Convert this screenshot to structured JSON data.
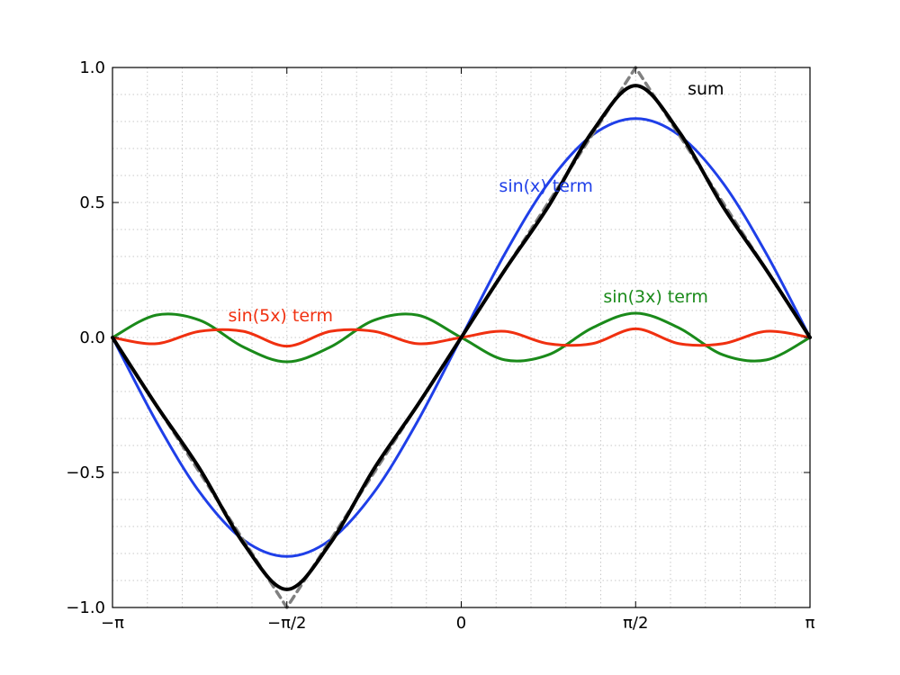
{
  "chart_data": {
    "type": "line",
    "title": "",
    "xlabel": "",
    "ylabel": "",
    "xlim": [
      -3.14159265,
      3.14159265
    ],
    "ylim": [
      -1.0,
      1.0
    ],
    "grid": true,
    "legend": "none",
    "x_ticks": [
      {
        "value": -3.14159265,
        "label": "−π"
      },
      {
        "value": -1.57079633,
        "label": "−π/2"
      },
      {
        "value": 0,
        "label": "0"
      },
      {
        "value": 1.57079633,
        "label": "π/2"
      },
      {
        "value": 3.14159265,
        "label": "π"
      }
    ],
    "y_ticks": [
      {
        "value": -1.0,
        "label": "−1.0"
      },
      {
        "value": -0.5,
        "label": "−0.5"
      },
      {
        "value": 0.0,
        "label": "0.0"
      },
      {
        "value": 0.5,
        "label": "0.5"
      },
      {
        "value": 1.0,
        "label": "1.0"
      }
    ],
    "x": [
      -3.1416,
      -2.7489,
      -2.3562,
      -1.9635,
      -1.5708,
      -1.1781,
      -0.7854,
      -0.3927,
      0.0,
      0.3927,
      0.7854,
      1.1781,
      1.5708,
      1.9635,
      2.3562,
      2.7489,
      3.1416
    ],
    "series": [
      {
        "key": "sin1",
        "color": "#1f3fe8",
        "values": [
          0.0,
          -0.31,
          -0.573,
          -0.749,
          -0.811,
          -0.749,
          -0.573,
          -0.31,
          0.0,
          0.31,
          0.573,
          0.749,
          0.811,
          0.749,
          0.573,
          0.31,
          0.0
        ]
      },
      {
        "key": "sin3",
        "color": "#1a8a1a",
        "values": [
          0.0,
          0.083,
          0.064,
          -0.035,
          -0.09,
          -0.035,
          0.064,
          0.083,
          0.0,
          -0.083,
          -0.064,
          0.035,
          0.09,
          0.035,
          -0.064,
          -0.083,
          0.0
        ]
      },
      {
        "key": "sin5",
        "color": "#f03010",
        "values": [
          0.0,
          -0.023,
          0.023,
          0.023,
          -0.032,
          0.023,
          0.023,
          -0.023,
          0.0,
          0.023,
          -0.023,
          -0.023,
          0.032,
          -0.023,
          -0.023,
          0.023,
          0.0
        ]
      },
      {
        "key": "sum",
        "color": "#000000",
        "values": [
          0.0,
          -0.25,
          -0.486,
          -0.761,
          -0.933,
          -0.761,
          -0.486,
          -0.25,
          0.0,
          0.25,
          0.486,
          0.761,
          0.933,
          0.761,
          0.486,
          0.25,
          0.0
        ]
      },
      {
        "key": "triangle",
        "color": "#808080",
        "dashed": true,
        "values": [
          0.0,
          -0.25,
          -0.5,
          -0.75,
          -1.0,
          -0.75,
          -0.5,
          -0.25,
          0.0,
          0.25,
          0.5,
          0.75,
          1.0,
          0.75,
          0.5,
          0.25,
          0.0
        ]
      }
    ],
    "annotations": [
      {
        "key": "sum",
        "label": "sum",
        "color": "#000000",
        "x": 2.04,
        "y": 0.9
      },
      {
        "key": "sin1",
        "label": "sin(x) term",
        "color": "#1f3fe8",
        "x": 0.34,
        "y": 0.54
      },
      {
        "key": "sin3",
        "label": "sin(3x) term",
        "color": "#1a8a1a",
        "x": 1.28,
        "y": 0.13
      },
      {
        "key": "sin5",
        "label": "sin(5x) term",
        "color": "#f03010",
        "x": -2.1,
        "y": 0.06
      }
    ]
  }
}
